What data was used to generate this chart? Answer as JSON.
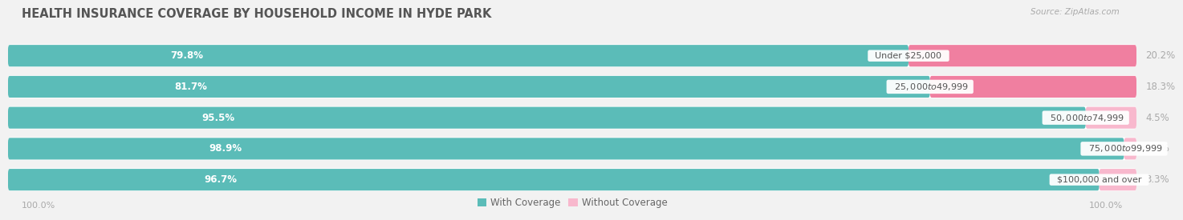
{
  "title": "HEALTH INSURANCE COVERAGE BY HOUSEHOLD INCOME IN HYDE PARK",
  "source": "Source: ZipAtlas.com",
  "categories": [
    "Under $25,000",
    "$25,000 to $49,999",
    "$50,000 to $74,999",
    "$75,000 to $99,999",
    "$100,000 and over"
  ],
  "with_coverage": [
    79.8,
    81.7,
    95.5,
    98.9,
    96.7
  ],
  "without_coverage": [
    20.2,
    18.3,
    4.5,
    1.1,
    3.3
  ],
  "color_with": "#5bbcb8",
  "color_without": "#f07fa0",
  "color_without_light": "#f8b8cd",
  "background_color": "#f2f2f2",
  "bar_background": "#ffffff",
  "title_fontsize": 10.5,
  "label_fontsize": 8.5,
  "cat_fontsize": 8.0,
  "tick_fontsize": 8.0,
  "legend_fontsize": 8.5,
  "axis_label_left": "100.0%",
  "axis_label_right": "100.0%"
}
